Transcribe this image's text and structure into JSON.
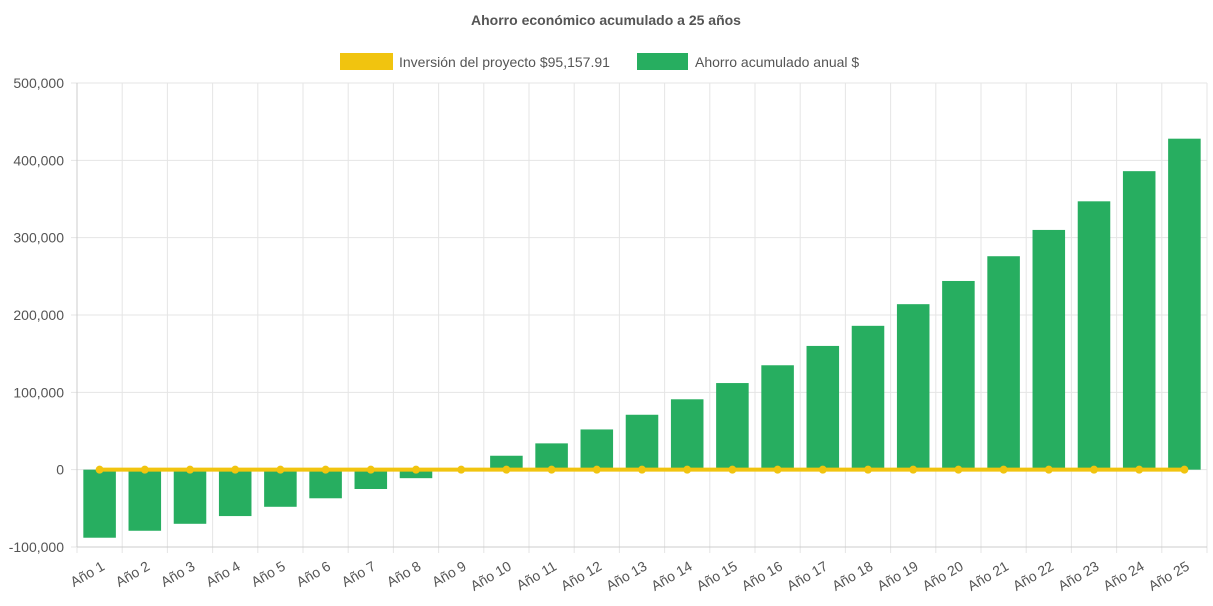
{
  "chart_data": {
    "type": "bar",
    "title": "Ahorro económico acumulado a 25 años",
    "categories": [
      "Año 1",
      "Año 2",
      "Año 3",
      "Año 4",
      "Año 5",
      "Año 6",
      "Año 7",
      "Año 8",
      "Año 9",
      "Año 10",
      "Año 11",
      "Año 12",
      "Año 13",
      "Año 14",
      "Año 15",
      "Año 16",
      "Año 17",
      "Año 18",
      "Año 19",
      "Año 20",
      "Año 21",
      "Año 22",
      "Año 23",
      "Año 24",
      "Año 25"
    ],
    "series": [
      {
        "name": "Inversión del proyecto $95,157.91",
        "type": "line",
        "color": "#f1c40f",
        "values": [
          0,
          0,
          0,
          0,
          0,
          0,
          0,
          0,
          0,
          0,
          0,
          0,
          0,
          0,
          0,
          0,
          0,
          0,
          0,
          0,
          0,
          0,
          0,
          0,
          0
        ]
      },
      {
        "name": "Ahorro acumulado anual $",
        "type": "bar",
        "color": "#27ae60",
        "values": [
          -88000,
          -79000,
          -70000,
          -60000,
          -48000,
          -37000,
          -25000,
          -11000,
          2000,
          18000,
          34000,
          52000,
          71000,
          91000,
          112000,
          135000,
          160000,
          186000,
          214000,
          244000,
          276000,
          310000,
          347000,
          386000,
          428000
        ]
      }
    ],
    "ylim": [
      -100000,
      500000
    ],
    "yticks": [
      -100000,
      0,
      100000,
      200000,
      300000,
      400000,
      500000
    ],
    "ytick_labels": [
      "-100,000",
      "0",
      "100,000",
      "200,000",
      "300,000",
      "400,000",
      "500,000"
    ],
    "xlabel": "",
    "ylabel": "",
    "grid": true,
    "legend": "top-center"
  }
}
